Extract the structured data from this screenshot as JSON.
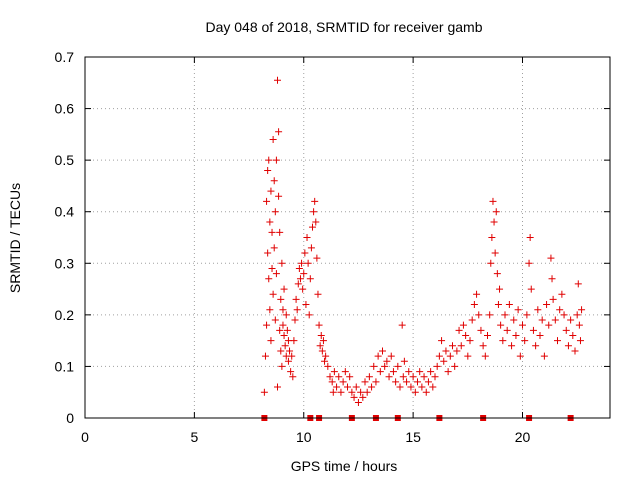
{
  "chart_data": {
    "type": "scatter",
    "title": "Day 048 of 2018, SRMTID for receiver gamb",
    "xlabel": "GPS time / hours",
    "ylabel": "SRMTID / TECUs",
    "xlim": [
      0,
      24
    ],
    "ylim": [
      0,
      0.7
    ],
    "xticks": [
      0,
      5,
      10,
      15,
      20
    ],
    "xtick_labels": [
      "0",
      "5",
      "10",
      "15",
      "20"
    ],
    "yticks": [
      0,
      0.1,
      0.2,
      0.3,
      0.4,
      0.5,
      0.6,
      0.7
    ],
    "ytick_labels": [
      "0",
      "0.1",
      "0.2",
      "0.3",
      "0.4",
      "0.5",
      "0.6",
      "0.7"
    ],
    "grid": true,
    "marker": "+",
    "color": "#e00000",
    "series": [
      {
        "name": "SRMTID",
        "points": [
          [
            8.2,
            0.05
          ],
          [
            8.25,
            0.12
          ],
          [
            8.3,
            0.18
          ],
          [
            8.3,
            0.42
          ],
          [
            8.35,
            0.48
          ],
          [
            8.35,
            0.32
          ],
          [
            8.4,
            0.5
          ],
          [
            8.4,
            0.27
          ],
          [
            8.45,
            0.21
          ],
          [
            8.45,
            0.38
          ],
          [
            8.5,
            0.44
          ],
          [
            8.5,
            0.15
          ],
          [
            8.55,
            0.36
          ],
          [
            8.55,
            0.29
          ],
          [
            8.6,
            0.54
          ],
          [
            8.6,
            0.24
          ],
          [
            8.65,
            0.46
          ],
          [
            8.65,
            0.33
          ],
          [
            8.7,
            0.4
          ],
          [
            8.7,
            0.19
          ],
          [
            8.75,
            0.5
          ],
          [
            8.75,
            0.28
          ],
          [
            8.8,
            0.655
          ],
          [
            8.8,
            0.06
          ],
          [
            8.85,
            0.555
          ],
          [
            8.85,
            0.43
          ],
          [
            8.9,
            0.36
          ],
          [
            8.9,
            0.17
          ],
          [
            8.95,
            0.23
          ],
          [
            8.95,
            0.13
          ],
          [
            9.0,
            0.3
          ],
          [
            9.0,
            0.1
          ],
          [
            9.05,
            0.21
          ],
          [
            9.05,
            0.18
          ],
          [
            9.1,
            0.25
          ],
          [
            9.1,
            0.16
          ],
          [
            9.15,
            0.14
          ],
          [
            9.2,
            0.2
          ],
          [
            9.2,
            0.12
          ],
          [
            9.25,
            0.17
          ],
          [
            9.3,
            0.11
          ],
          [
            9.3,
            0.15
          ],
          [
            9.35,
            0.13
          ],
          [
            9.4,
            0.09
          ],
          [
            9.45,
            0.12
          ],
          [
            9.5,
            0.08
          ],
          [
            9.55,
            0.15
          ],
          [
            9.6,
            0.19
          ],
          [
            9.65,
            0.23
          ],
          [
            9.7,
            0.21
          ],
          [
            9.75,
            0.26
          ],
          [
            9.8,
            0.29
          ],
          [
            9.85,
            0.27
          ],
          [
            9.9,
            0.3
          ],
          [
            9.95,
            0.25
          ],
          [
            10.0,
            0.28
          ],
          [
            10.05,
            0.32
          ],
          [
            10.1,
            0.22
          ],
          [
            10.15,
            0.35
          ],
          [
            10.2,
            0.3
          ],
          [
            10.25,
            0.2
          ],
          [
            10.3,
            0.27
          ],
          [
            10.35,
            0.33
          ],
          [
            10.4,
            0.37
          ],
          [
            10.45,
            0.4
          ],
          [
            10.5,
            0.42
          ],
          [
            10.55,
            0.38
          ],
          [
            10.6,
            0.31
          ],
          [
            10.65,
            0.24
          ],
          [
            10.7,
            0.18
          ],
          [
            10.75,
            0.14
          ],
          [
            10.8,
            0.16
          ],
          [
            10.85,
            0.13
          ],
          [
            10.9,
            0.15
          ],
          [
            10.95,
            0.11
          ],
          [
            11.0,
            0.12
          ],
          [
            11.1,
            0.1
          ],
          [
            11.2,
            0.08
          ],
          [
            11.3,
            0.07
          ],
          [
            11.35,
            0.05
          ],
          [
            11.4,
            0.09
          ],
          [
            11.5,
            0.06
          ],
          [
            11.6,
            0.08
          ],
          [
            11.7,
            0.05
          ],
          [
            11.8,
            0.07
          ],
          [
            11.9,
            0.09
          ],
          [
            12.0,
            0.06
          ],
          [
            12.1,
            0.08
          ],
          [
            12.2,
            0.05
          ],
          [
            12.3,
            0.04
          ],
          [
            12.4,
            0.06
          ],
          [
            12.5,
            0.03
          ],
          [
            12.6,
            0.05
          ],
          [
            12.7,
            0.04
          ],
          [
            12.8,
            0.07
          ],
          [
            12.9,
            0.05
          ],
          [
            13.0,
            0.08
          ],
          [
            13.1,
            0.06
          ],
          [
            13.2,
            0.1
          ],
          [
            13.3,
            0.07
          ],
          [
            13.4,
            0.12
          ],
          [
            13.5,
            0.09
          ],
          [
            13.6,
            0.13
          ],
          [
            13.7,
            0.1
          ],
          [
            13.8,
            0.11
          ],
          [
            13.9,
            0.08
          ],
          [
            14.0,
            0.12
          ],
          [
            14.1,
            0.09
          ],
          [
            14.2,
            0.07
          ],
          [
            14.3,
            0.1
          ],
          [
            14.4,
            0.06
          ],
          [
            14.5,
            0.18
          ],
          [
            14.55,
            0.08
          ],
          [
            14.6,
            0.11
          ],
          [
            14.7,
            0.07
          ],
          [
            14.8,
            0.09
          ],
          [
            14.9,
            0.06
          ],
          [
            15.0,
            0.08
          ],
          [
            15.1,
            0.05
          ],
          [
            15.2,
            0.07
          ],
          [
            15.3,
            0.09
          ],
          [
            15.4,
            0.06
          ],
          [
            15.5,
            0.08
          ],
          [
            15.6,
            0.05
          ],
          [
            15.7,
            0.07
          ],
          [
            15.8,
            0.09
          ],
          [
            15.9,
            0.06
          ],
          [
            16.0,
            0.08
          ],
          [
            16.1,
            0.1
          ],
          [
            16.2,
            0.12
          ],
          [
            16.3,
            0.15
          ],
          [
            16.4,
            0.11
          ],
          [
            16.5,
            0.13
          ],
          [
            16.6,
            0.09
          ],
          [
            16.7,
            0.12
          ],
          [
            16.8,
            0.14
          ],
          [
            16.9,
            0.1
          ],
          [
            17.0,
            0.13
          ],
          [
            17.1,
            0.17
          ],
          [
            17.2,
            0.14
          ],
          [
            17.3,
            0.18
          ],
          [
            17.4,
            0.16
          ],
          [
            17.5,
            0.12
          ],
          [
            17.6,
            0.15
          ],
          [
            17.7,
            0.19
          ],
          [
            17.8,
            0.22
          ],
          [
            17.9,
            0.24
          ],
          [
            18.0,
            0.2
          ],
          [
            18.1,
            0.17
          ],
          [
            18.2,
            0.14
          ],
          [
            18.3,
            0.12
          ],
          [
            18.4,
            0.16
          ],
          [
            18.5,
            0.2
          ],
          [
            18.55,
            0.3
          ],
          [
            18.6,
            0.35
          ],
          [
            18.65,
            0.42
          ],
          [
            18.7,
            0.38
          ],
          [
            18.75,
            0.32
          ],
          [
            18.8,
            0.4
          ],
          [
            18.85,
            0.28
          ],
          [
            18.9,
            0.22
          ],
          [
            18.95,
            0.25
          ],
          [
            19.0,
            0.18
          ],
          [
            19.1,
            0.15
          ],
          [
            19.2,
            0.2
          ],
          [
            19.3,
            0.17
          ],
          [
            19.4,
            0.22
          ],
          [
            19.5,
            0.14
          ],
          [
            19.6,
            0.19
          ],
          [
            19.7,
            0.16
          ],
          [
            19.8,
            0.21
          ],
          [
            19.9,
            0.12
          ],
          [
            20.0,
            0.18
          ],
          [
            20.1,
            0.15
          ],
          [
            20.2,
            0.2
          ],
          [
            20.3,
            0.3
          ],
          [
            20.35,
            0.35
          ],
          [
            20.4,
            0.25
          ],
          [
            20.5,
            0.17
          ],
          [
            20.6,
            0.14
          ],
          [
            20.7,
            0.21
          ],
          [
            20.8,
            0.16
          ],
          [
            20.9,
            0.19
          ],
          [
            21.0,
            0.12
          ],
          [
            21.1,
            0.22
          ],
          [
            21.2,
            0.18
          ],
          [
            21.3,
            0.31
          ],
          [
            21.35,
            0.27
          ],
          [
            21.4,
            0.23
          ],
          [
            21.5,
            0.19
          ],
          [
            21.6,
            0.15
          ],
          [
            21.7,
            0.21
          ],
          [
            21.8,
            0.24
          ],
          [
            21.9,
            0.2
          ],
          [
            22.0,
            0.17
          ],
          [
            22.1,
            0.14
          ],
          [
            22.2,
            0.19
          ],
          [
            22.3,
            0.16
          ],
          [
            22.4,
            0.13
          ],
          [
            22.5,
            0.2
          ],
          [
            22.55,
            0.26
          ],
          [
            22.6,
            0.18
          ],
          [
            22.65,
            0.15
          ],
          [
            22.7,
            0.21
          ]
        ]
      }
    ],
    "zero_line_markers": [
      8.2,
      10.3,
      10.7,
      12.2,
      13.3,
      14.3,
      16.2,
      18.2,
      20.3,
      22.2
    ]
  }
}
